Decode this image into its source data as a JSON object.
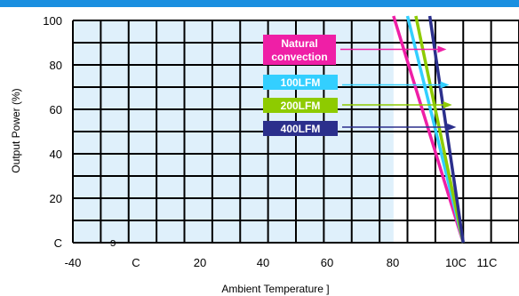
{
  "header": {
    "accent": "#1a8fe0"
  },
  "chart_data": {
    "type": "line",
    "title": "",
    "xlabel": "Ambient Temperature  ]",
    "ylabel": "Output Power  (%)",
    "xlim": [
      -40,
      120
    ],
    "ylim": [
      0,
      100
    ],
    "x_ticks": [
      "-40",
      "C",
      "20",
      "40",
      "60",
      "80",
      "10C",
      "11C"
    ],
    "y_ticks": [
      "C",
      "20",
      "40",
      "60",
      "80",
      "100"
    ],
    "stray_mark": "ɔ",
    "grid": true,
    "shaded_region": {
      "x_start": -40,
      "x_end": 75,
      "color": "#dff0fb"
    },
    "series": [
      {
        "name": "Natural convection",
        "color": "#ef1fa6",
        "x": [
          75,
          100
        ],
        "y": [
          105,
          0
        ],
        "callout": [
          94,
          87
        ],
        "label_line1": "Natural",
        "label_line2": "convection",
        "label_bg": "#ef1fa6"
      },
      {
        "name": "100LFM",
        "color": "#33cfff",
        "x": [
          80,
          100
        ],
        "y": [
          105,
          0
        ],
        "callout": [
          95,
          71
        ],
        "label_line1": "100LFM",
        "label_line2": "",
        "label_bg": "#33cfff"
      },
      {
        "name": "200LFM",
        "color": "#8ecb00",
        "x": [
          83,
          100
        ],
        "y": [
          105,
          0
        ],
        "callout": [
          96,
          62
        ],
        "label_line1": "200LFM",
        "label_line2": "",
        "label_bg": "#8ecb00"
      },
      {
        "name": "400LFM",
        "color": "#2b2f8c",
        "x": [
          88,
          100
        ],
        "y": [
          105,
          0
        ],
        "callout": [
          97.5,
          52
        ],
        "label_line1": "400LFM",
        "label_line2": "",
        "label_bg": "#2b2f8c"
      }
    ]
  }
}
